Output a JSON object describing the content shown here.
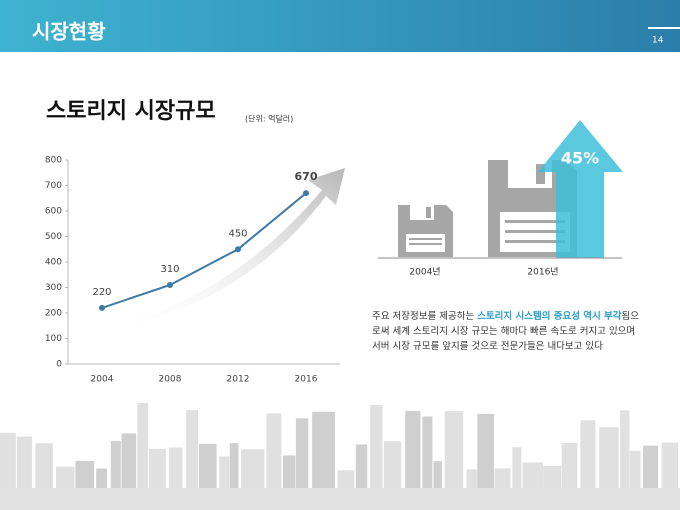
{
  "header": {
    "title": "시장현황",
    "page": "14"
  },
  "title": "스토리지 시장규모",
  "unit": "(단위: 억달러)",
  "chart_data": {
    "type": "line",
    "categories": [
      "2004",
      "2008",
      "2012",
      "2016"
    ],
    "values": [
      220,
      310,
      450,
      670
    ],
    "color": "#3d79a8",
    "ylim": [
      0,
      800
    ],
    "yticks": [
      0,
      100,
      200,
      300,
      400,
      500,
      600,
      700,
      800
    ]
  },
  "infographic": {
    "growth": "45%",
    "labels": [
      "2004년",
      "2016년"
    ]
  },
  "description": {
    "segments": [
      {
        "text": "주요 저장정보를 제공하는 ",
        "highlight": false
      },
      {
        "text": "스토리지 시스템의 중요성 역시 부각",
        "highlight": true
      },
      {
        "text": "됨으로써 세계 스토리지 시장 규모는 해마다 빠른 속도로 커지고 있으며 서버 시장 규모를 앞지를 것으로 전문가들은 내다보고 있다",
        "highlight": false
      }
    ]
  }
}
